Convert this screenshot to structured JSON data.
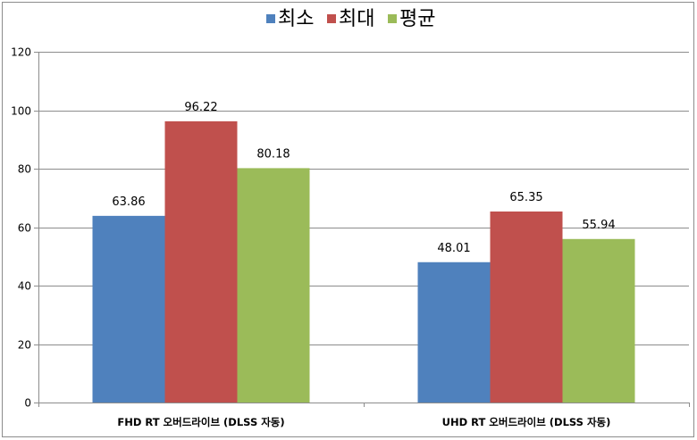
{
  "chart_data": {
    "type": "bar",
    "title": "",
    "xlabel": "",
    "ylabel": "",
    "categories": [
      "FHD RT 오버드라이브 (DLSS 자동)",
      "UHD RT 오버드라이브 (DLSS 자동)"
    ],
    "series": [
      {
        "name": "최소",
        "values": [
          63.86,
          48.01
        ],
        "color": "#4f81bd"
      },
      {
        "name": "최대",
        "values": [
          96.22,
          65.35
        ],
        "color": "#c0504d"
      },
      {
        "name": "평균",
        "values": [
          80.18,
          55.94
        ],
        "color": "#9bbb59"
      }
    ],
    "ylim": [
      0,
      120
    ],
    "yticks": [
      0,
      20,
      40,
      60,
      80,
      100,
      120
    ],
    "grid": true,
    "legend_position": "top-center",
    "data_labels": true
  }
}
